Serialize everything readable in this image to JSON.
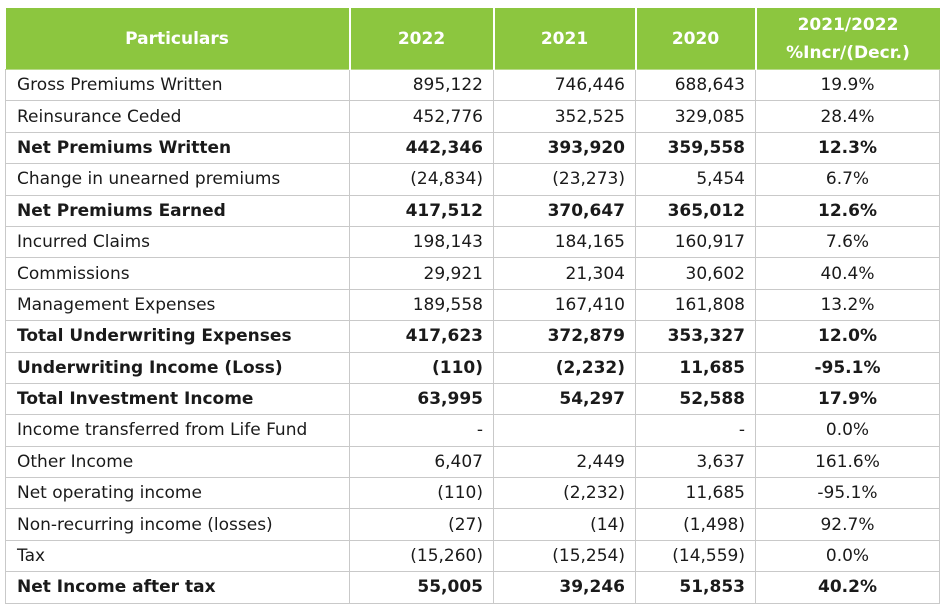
{
  "table": {
    "headers": {
      "particulars": "Particulars",
      "y2022": "2022",
      "y2021": "2021",
      "y2020": "2020",
      "change_line1": "2021/2022",
      "change_line2": "%Incr/(Decr.)"
    },
    "rows": [
      {
        "label": "Gross Premiums Written",
        "v2022": "895,122",
        "v2021": "746,446",
        "v2020": "688,643",
        "change": "19.9%",
        "bold": false
      },
      {
        "label": "Reinsurance Ceded",
        "v2022": "452,776",
        "v2021": "352,525",
        "v2020": "329,085",
        "change": "28.4%",
        "bold": false
      },
      {
        "label": "Net Premiums Written",
        "v2022": "442,346",
        "v2021": "393,920",
        "v2020": "359,558",
        "change": "12.3%",
        "bold": true
      },
      {
        "label": "Change in unearned premiums",
        "v2022": "(24,834)",
        "v2021": "(23,273)",
        "v2020": "5,454",
        "change": "6.7%",
        "bold": false
      },
      {
        "label": "Net Premiums Earned",
        "v2022": "417,512",
        "v2021": "370,647",
        "v2020": "365,012",
        "change": "12.6%",
        "bold": true
      },
      {
        "label": "Incurred Claims",
        "v2022": "198,143",
        "v2021": "184,165",
        "v2020": "160,917",
        "change": "7.6%",
        "bold": false
      },
      {
        "label": "Commissions",
        "v2022": "29,921",
        "v2021": "21,304",
        "v2020": "30,602",
        "change": "40.4%",
        "bold": false
      },
      {
        "label": "Management Expenses",
        "v2022": "189,558",
        "v2021": "167,410",
        "v2020": "161,808",
        "change": "13.2%",
        "bold": false
      },
      {
        "label": "Total Underwriting Expenses",
        "v2022": "417,623",
        "v2021": "372,879",
        "v2020": "353,327",
        "change": "12.0%",
        "bold": true
      },
      {
        "label": "Underwriting Income (Loss)",
        "v2022": "(110)",
        "v2021": "(2,232)",
        "v2020": "11,685",
        "change": "-95.1%",
        "bold": true
      },
      {
        "label": "Total Investment Income",
        "v2022": "63,995",
        "v2021": "54,297",
        "v2020": "52,588",
        "change": "17.9%",
        "bold": true
      },
      {
        "label": "Income transferred from Life Fund",
        "v2022": "-",
        "v2021": "",
        "v2020": "-",
        "change": "0.0%",
        "bold": false
      },
      {
        "label": "Other Income",
        "v2022": "6,407",
        "v2021": "2,449",
        "v2020": "3,637",
        "change": "161.6%",
        "bold": false
      },
      {
        "label": "Net operating income",
        "v2022": "(110)",
        "v2021": "(2,232)",
        "v2020": "11,685",
        "change": "-95.1%",
        "bold": false
      },
      {
        "label": "Non-recurring income (losses)",
        "v2022": "(27)",
        "v2021": "(14)",
        "v2020": "(1,498)",
        "change": "92.7%",
        "bold": false
      },
      {
        "label": "Tax",
        "v2022": "(15,260)",
        "v2021": "(15,254)",
        "v2020": "(14,559)",
        "change": "0.0%",
        "bold": false
      },
      {
        "label": "Net Income after tax",
        "v2022": "55,005",
        "v2021": "39,246",
        "v2020": "51,853",
        "change": "40.2%",
        "bold": true
      }
    ]
  }
}
